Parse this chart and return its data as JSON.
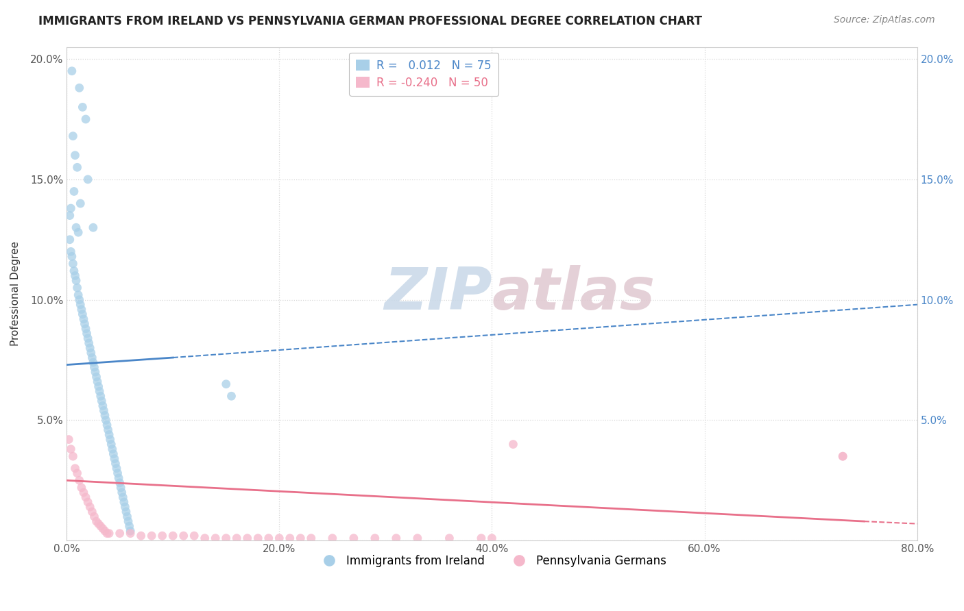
{
  "title": "IMMIGRANTS FROM IRELAND VS PENNSYLVANIA GERMAN PROFESSIONAL DEGREE CORRELATION CHART",
  "source": "Source: ZipAtlas.com",
  "ylabel": "Professional Degree",
  "xlim": [
    0.0,
    0.8
  ],
  "ylim": [
    0.0,
    0.205
  ],
  "yticks": [
    0.0,
    0.05,
    0.1,
    0.15,
    0.2
  ],
  "ytick_labels": [
    "",
    "5.0%",
    "10.0%",
    "15.0%",
    "20.0%"
  ],
  "xticks": [
    0.0,
    0.2,
    0.4,
    0.6,
    0.8
  ],
  "xtick_labels": [
    "0.0%",
    "20.0%",
    "40.0%",
    "60.0%",
    "80.0%"
  ],
  "legend_r1": "R = ",
  "legend_v1": "0.012",
  "legend_n1_label": "N = ",
  "legend_n1": "75",
  "legend_r2": "R = ",
  "legend_v2": "-0.240",
  "legend_n2_label": "N = ",
  "legend_n2": "50",
  "series1_patch_color": "#a8cfe8",
  "series2_patch_color": "#f5b8cb",
  "trendline1_color": "#4a86c8",
  "trendline2_color": "#e8708a",
  "series1_color": "#a8cfe8",
  "series2_color": "#f5b8cb",
  "background_color": "#ffffff",
  "grid_color": "#d8d8d8",
  "watermark_color": "#dce8f0",
  "watermark_color2": "#e8d0d8",
  "right_tick_color": "#4a86c8",
  "bottom_legend1": "Immigrants from Ireland",
  "bottom_legend2": "Pennsylvania Germans",
  "series1_x": [
    0.005,
    0.012,
    0.015,
    0.018,
    0.006,
    0.008,
    0.01,
    0.02,
    0.007,
    0.013,
    0.004,
    0.003,
    0.025,
    0.009,
    0.011,
    0.003,
    0.004,
    0.005,
    0.006,
    0.007,
    0.008,
    0.009,
    0.01,
    0.011,
    0.012,
    0.013,
    0.014,
    0.015,
    0.016,
    0.017,
    0.018,
    0.019,
    0.02,
    0.021,
    0.022,
    0.023,
    0.024,
    0.025,
    0.026,
    0.027,
    0.028,
    0.029,
    0.03,
    0.031,
    0.032,
    0.033,
    0.034,
    0.035,
    0.036,
    0.037,
    0.038,
    0.039,
    0.04,
    0.041,
    0.042,
    0.043,
    0.044,
    0.045,
    0.046,
    0.047,
    0.048,
    0.049,
    0.05,
    0.051,
    0.052,
    0.053,
    0.054,
    0.055,
    0.056,
    0.057,
    0.058,
    0.059,
    0.06,
    0.15,
    0.155
  ],
  "series1_y": [
    0.195,
    0.188,
    0.18,
    0.175,
    0.168,
    0.16,
    0.155,
    0.15,
    0.145,
    0.14,
    0.138,
    0.135,
    0.13,
    0.13,
    0.128,
    0.125,
    0.12,
    0.118,
    0.115,
    0.112,
    0.11,
    0.108,
    0.105,
    0.102,
    0.1,
    0.098,
    0.096,
    0.094,
    0.092,
    0.09,
    0.088,
    0.086,
    0.084,
    0.082,
    0.08,
    0.078,
    0.076,
    0.074,
    0.072,
    0.07,
    0.068,
    0.066,
    0.064,
    0.062,
    0.06,
    0.058,
    0.056,
    0.054,
    0.052,
    0.05,
    0.048,
    0.046,
    0.044,
    0.042,
    0.04,
    0.038,
    0.036,
    0.034,
    0.032,
    0.03,
    0.028,
    0.026,
    0.024,
    0.022,
    0.02,
    0.018,
    0.016,
    0.014,
    0.012,
    0.01,
    0.008,
    0.006,
    0.004,
    0.065,
    0.06
  ],
  "series2_x": [
    0.002,
    0.004,
    0.006,
    0.008,
    0.01,
    0.012,
    0.014,
    0.016,
    0.018,
    0.02,
    0.022,
    0.024,
    0.026,
    0.028,
    0.03,
    0.032,
    0.034,
    0.036,
    0.038,
    0.04,
    0.05,
    0.06,
    0.07,
    0.08,
    0.09,
    0.1,
    0.11,
    0.12,
    0.13,
    0.14,
    0.15,
    0.16,
    0.17,
    0.18,
    0.19,
    0.2,
    0.21,
    0.22,
    0.23,
    0.25,
    0.27,
    0.29,
    0.31,
    0.33,
    0.36,
    0.39,
    0.4,
    0.42,
    0.73,
    0.73
  ],
  "series2_y": [
    0.042,
    0.038,
    0.035,
    0.03,
    0.028,
    0.025,
    0.022,
    0.02,
    0.018,
    0.016,
    0.014,
    0.012,
    0.01,
    0.008,
    0.007,
    0.006,
    0.005,
    0.004,
    0.003,
    0.003,
    0.003,
    0.003,
    0.002,
    0.002,
    0.002,
    0.002,
    0.002,
    0.002,
    0.001,
    0.001,
    0.001,
    0.001,
    0.001,
    0.001,
    0.001,
    0.001,
    0.001,
    0.001,
    0.001,
    0.001,
    0.001,
    0.001,
    0.001,
    0.001,
    0.001,
    0.001,
    0.001,
    0.04,
    0.035,
    0.035
  ],
  "trendline1_x0": 0.0,
  "trendline1_y0": 0.073,
  "trendline1_x1": 0.1,
  "trendline1_y1": 0.076,
  "trendline1_x2": 0.8,
  "trendline1_y2": 0.098,
  "trendline2_x0": 0.0,
  "trendline2_y0": 0.025,
  "trendline2_x1": 0.75,
  "trendline2_y1": 0.008,
  "trendline2_x2": 0.8,
  "trendline2_y2": 0.007
}
